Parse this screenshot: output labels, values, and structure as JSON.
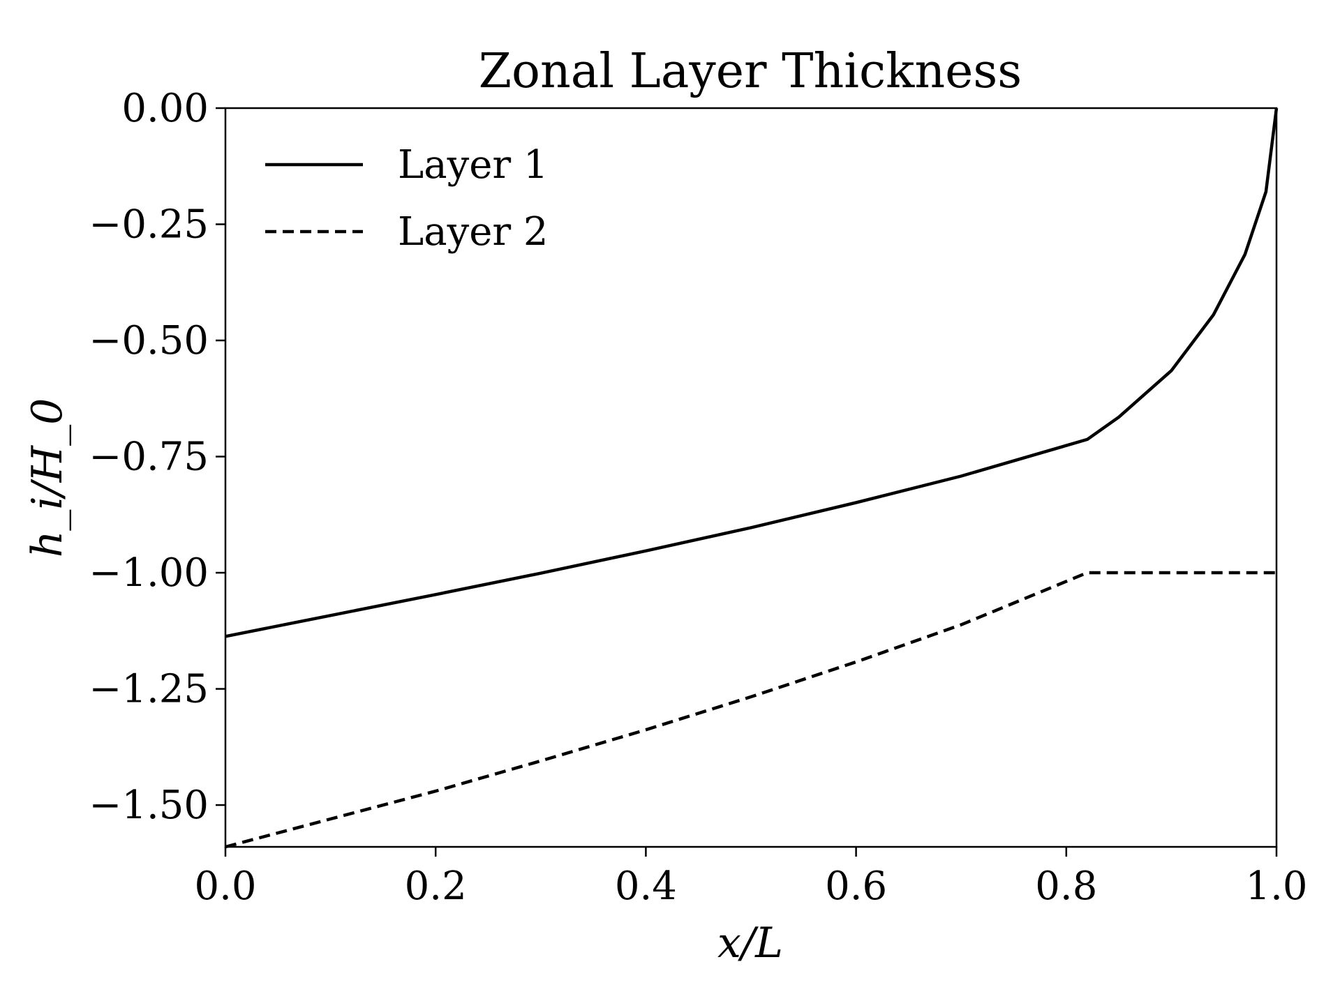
{
  "chart_data": {
    "type": "line",
    "title": "Zonal Layer Thickness",
    "xlabel": "x/L",
    "ylabel": "h_i/H_0",
    "xlim": [
      0.0,
      1.0
    ],
    "ylim": [
      -1.59,
      0.0
    ],
    "xticks": [
      0.0,
      0.2,
      0.4,
      0.6,
      0.8,
      1.0
    ],
    "xtick_labels": [
      "0.0",
      "0.2",
      "0.4",
      "0.6",
      "0.8",
      "1.0"
    ],
    "yticks": [
      0.0,
      -0.25,
      -0.5,
      -0.75,
      -1.0,
      -1.25,
      -1.5
    ],
    "ytick_labels": [
      "0.00",
      "−0.25",
      "−0.50",
      "−0.75",
      "−1.00",
      "−1.25",
      "−1.50"
    ],
    "grid": false,
    "legend_position": "upper-left",
    "series": [
      {
        "name": "Layer 1",
        "style": "solid",
        "color": "#000000",
        "x": [
          0.0,
          0.1,
          0.2,
          0.3,
          0.4,
          0.5,
          0.6,
          0.7,
          0.82,
          0.85,
          0.9,
          0.94,
          0.97,
          0.99,
          1.0
        ],
        "y": [
          -1.137,
          -1.092,
          -1.047,
          -1.001,
          -0.953,
          -0.903,
          -0.849,
          -0.792,
          -0.713,
          -0.665,
          -0.565,
          -0.445,
          -0.315,
          -0.18,
          0.0
        ]
      },
      {
        "name": "Layer 2",
        "style": "dashed",
        "color": "#000000",
        "x": [
          0.0,
          0.1,
          0.2,
          0.3,
          0.4,
          0.5,
          0.6,
          0.7,
          0.82,
          0.85,
          0.9,
          0.95,
          1.0
        ],
        "y": [
          -1.59,
          -1.53,
          -1.47,
          -1.405,
          -1.338,
          -1.267,
          -1.192,
          -1.112,
          -1.0,
          -1.0,
          -1.0,
          -1.0,
          -1.0
        ]
      }
    ]
  }
}
